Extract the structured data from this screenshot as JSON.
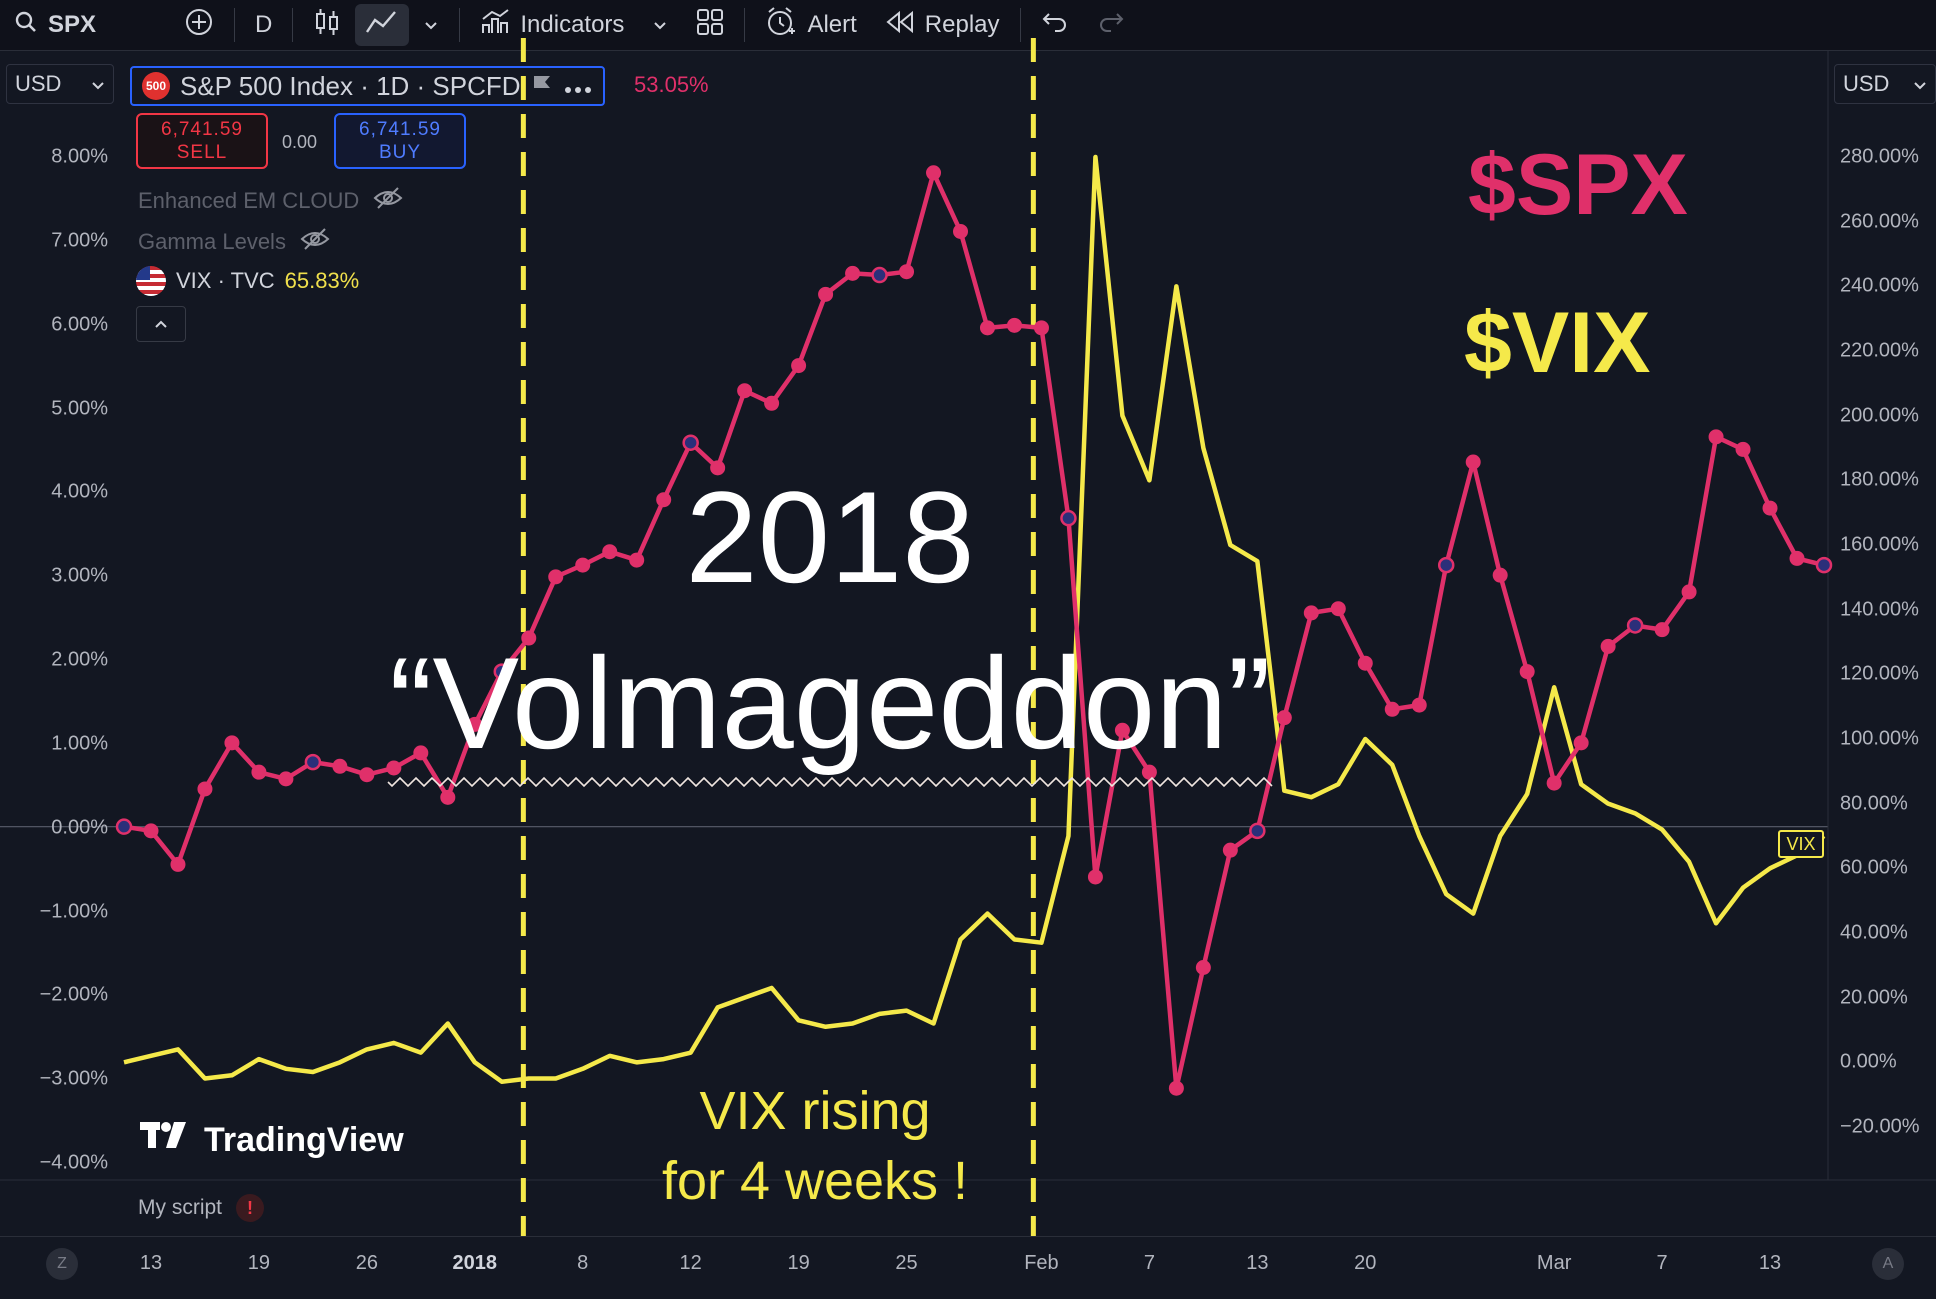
{
  "toolbar": {
    "symbol": "SPX",
    "interval": "D",
    "indicators_label": "Indicators",
    "alert_label": "Alert",
    "replay_label": "Replay"
  },
  "currency": {
    "left": "USD",
    "right": "USD"
  },
  "legend": {
    "badge": "500",
    "title": "S&P 500 Index · 1D · SPCFD",
    "change": "53.05%",
    "sell_price": "6,741.59",
    "sell_label": "SELL",
    "spread": "0.00",
    "buy_price": "6,741.59",
    "buy_label": "BUY",
    "indicator_1": "Enhanced EM CLOUD",
    "indicator_2": "Gamma Levels",
    "vix_name": "VIX · TVC",
    "vix_change": "65.83%"
  },
  "script_label": "My script",
  "watermark": "TradingView",
  "annotations": {
    "spx_label": "$SPX",
    "vix_label": "$VIX",
    "year": "2018",
    "name": "“Volmageddon”",
    "vix_note_line1": "VIX rising",
    "vix_note_line2": "for 4 weeks !",
    "vix_tag": "VIX"
  },
  "axis_buttons": {
    "left": "Z",
    "right": "A"
  },
  "colors": {
    "spx": "#e0306a",
    "vix": "#f5e94a",
    "background": "#131722"
  },
  "chart_data": {
    "type": "line",
    "x_ticks": [
      {
        "label": "13",
        "x": 1
      },
      {
        "label": "19",
        "x": 5
      },
      {
        "label": "26",
        "x": 9
      },
      {
        "label": "2018",
        "x": 13,
        "bold": true
      },
      {
        "label": "8",
        "x": 17
      },
      {
        "label": "12",
        "x": 21
      },
      {
        "label": "19",
        "x": 25
      },
      {
        "label": "25",
        "x": 29
      },
      {
        "label": "Feb",
        "x": 34
      },
      {
        "label": "7",
        "x": 38
      },
      {
        "label": "13",
        "x": 42
      },
      {
        "label": "20",
        "x": 46
      },
      {
        "label": "Mar",
        "x": 53
      },
      {
        "label": "7",
        "x": 57
      },
      {
        "label": "13",
        "x": 61
      }
    ],
    "left_axis": {
      "ticks": [
        "8.00%",
        "7.00%",
        "6.00%",
        "5.00%",
        "4.00%",
        "3.00%",
        "2.00%",
        "1.00%",
        "0.00%",
        "−1.00%",
        "−2.00%",
        "−3.00%",
        "−4.00%"
      ],
      "range": [
        -4,
        8
      ]
    },
    "right_axis": {
      "ticks": [
        "280.00%",
        "260.00%",
        "240.00%",
        "220.00%",
        "200.00%",
        "180.00%",
        "160.00%",
        "140.00%",
        "120.00%",
        "100.00%",
        "80.00%",
        "60.00%",
        "40.00%",
        "20.00%",
        "0.00%",
        "−20.00%"
      ],
      "range": [
        -20,
        280
      ]
    },
    "x_range": [
      0,
      63
    ],
    "series": [
      {
        "name": "$SPX",
        "axis": "left",
        "x": [
          0,
          1,
          2,
          3,
          4,
          5,
          6,
          7,
          8,
          9,
          10,
          11,
          12,
          13,
          14,
          15,
          16,
          17,
          18,
          19,
          20,
          21,
          22,
          23,
          24,
          25,
          26,
          27,
          28,
          29,
          30,
          31,
          32,
          33,
          34,
          35,
          36,
          37,
          38,
          39,
          40,
          41,
          42,
          43,
          44,
          45,
          46,
          47,
          48,
          49,
          50,
          51,
          52,
          53,
          54,
          55,
          56,
          57,
          58,
          59,
          60,
          61,
          62,
          63
        ],
        "values": [
          0.0,
          -0.05,
          -0.45,
          0.45,
          1.0,
          0.65,
          0.57,
          0.77,
          0.72,
          0.62,
          0.7,
          0.88,
          0.35,
          1.22,
          1.85,
          2.25,
          2.98,
          3.12,
          3.28,
          3.18,
          3.9,
          4.58,
          4.28,
          5.2,
          5.05,
          5.5,
          6.35,
          6.6,
          6.58,
          6.62,
          7.8,
          7.1,
          5.95,
          5.98,
          5.95,
          3.68,
          -0.6,
          1.15,
          0.65,
          -3.12,
          -1.68,
          -0.28,
          -0.05,
          1.3,
          2.55,
          2.6,
          1.95,
          1.4,
          1.45,
          3.12,
          4.35,
          3.0,
          1.85,
          0.52,
          1.0,
          2.15,
          2.4,
          2.35,
          2.8,
          4.65,
          4.5,
          3.8,
          3.2,
          3.12
        ]
      },
      {
        "name": "$VIX",
        "axis": "right",
        "x": [
          0,
          1,
          2,
          3,
          4,
          5,
          6,
          7,
          8,
          9,
          10,
          11,
          12,
          13,
          14,
          15,
          16,
          17,
          18,
          19,
          20,
          21,
          22,
          23,
          24,
          25,
          26,
          27,
          28,
          29,
          30,
          31,
          32,
          33,
          34,
          35,
          36,
          37,
          38,
          39,
          40,
          41,
          42,
          43,
          44,
          45,
          46,
          47,
          48,
          49,
          50,
          51,
          52,
          53,
          54,
          55,
          56,
          57,
          58,
          59,
          60,
          61,
          62,
          63
        ],
        "values": [
          0,
          2,
          4,
          -5,
          -4,
          1,
          -2,
          -3,
          0,
          4,
          6,
          3,
          12,
          0,
          -6,
          -5,
          -5,
          -2,
          2,
          0,
          1,
          3,
          17,
          20,
          23,
          13,
          11,
          12,
          15,
          16,
          12,
          38,
          46,
          38,
          37,
          70,
          280,
          200,
          180,
          240,
          190,
          160,
          155,
          84,
          82,
          86,
          100,
          92,
          70,
          52,
          46,
          70,
          83,
          116,
          86,
          80,
          77,
          72,
          62,
          43,
          54,
          60,
          64,
          70
        ]
      }
    ],
    "vertical_markers_x": [
      14.8,
      33.7
    ]
  }
}
